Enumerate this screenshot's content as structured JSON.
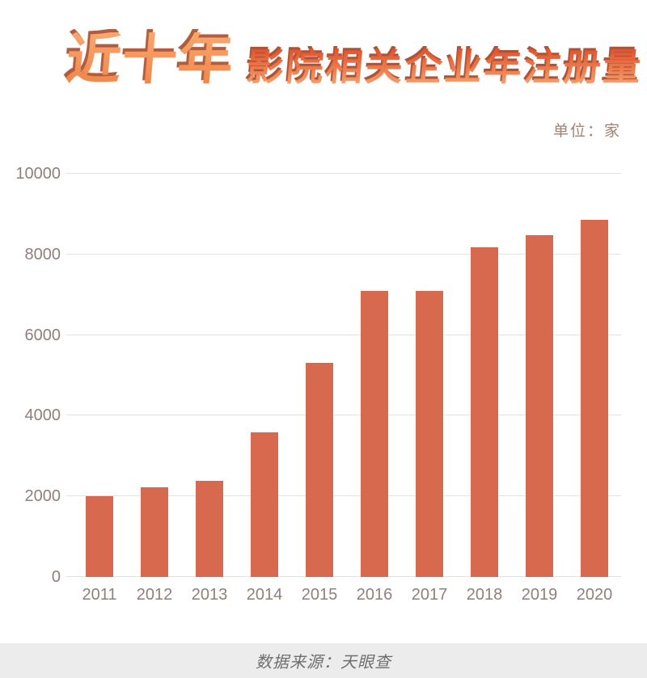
{
  "header": {
    "title_main": "近十年",
    "title_sub": "影院相关企业年注册量",
    "unit_label": "单位：家"
  },
  "footer": {
    "source": "数据来源：天眼查"
  },
  "colors": {
    "bar": "#d7694e",
    "title_face_top": "#f9a76e",
    "title_face_bottom": "#ef8449",
    "title_shadow": "#b05c3f",
    "subtitle_top": "#e2512b",
    "subtitle_bottom": "#f7a16b",
    "subtitle_shadow": "#a9543a",
    "axis_label": "#8f807b",
    "gridline": "#e3e3e3",
    "unit_label_color": "#a28370",
    "footer_bg": "#ececec",
    "footer_text": "#6e6e6e"
  },
  "chart_data": {
    "type": "bar",
    "title": "近十年影院相关企业年注册量",
    "unit": "家",
    "categories": [
      "2011",
      "2012",
      "2013",
      "2014",
      "2015",
      "2016",
      "2017",
      "2018",
      "2019",
      "2020"
    ],
    "values": [
      2000,
      2230,
      2380,
      3590,
      5320,
      7090,
      7090,
      8180,
      8470,
      8850
    ],
    "yticks": [
      0,
      2000,
      4000,
      6000,
      8000,
      10000
    ],
    "ylim": [
      0,
      10000
    ],
    "xlabel": "",
    "ylabel": "",
    "grid": true,
    "legend": false,
    "source": "数据来源：天眼查"
  }
}
